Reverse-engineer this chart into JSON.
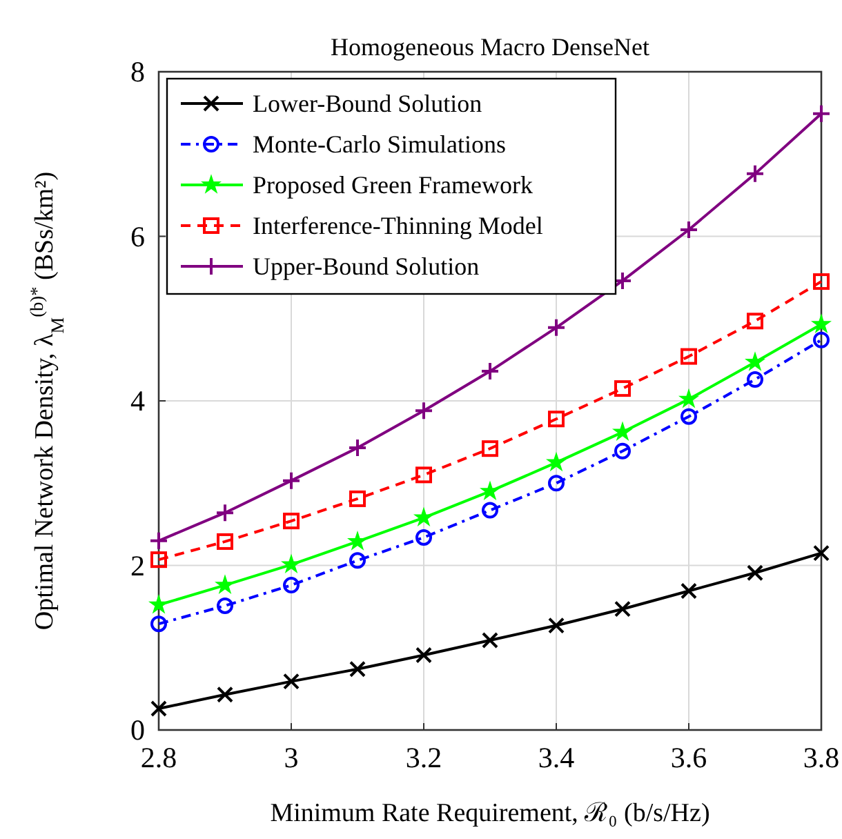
{
  "chart_data": {
    "type": "line",
    "title": "Homogeneous Macro DenseNet",
    "xlabel": "Minimum Rate Requirement, ℛ₀ (b/s/Hz)",
    "ylabel": "Optimal Network Density, λ$_{M}$$^{(b)*}$ (BSs/km²)",
    "x": [
      2.8,
      2.9,
      3.0,
      3.1,
      3.2,
      3.3,
      3.4,
      3.5,
      3.6,
      3.7,
      3.8
    ],
    "series": [
      {
        "name": "Lower-Bound Solution",
        "color": "#000000",
        "marker": "cross",
        "line_style": "solid",
        "values": [
          0.26,
          0.43,
          0.59,
          0.74,
          0.91,
          1.09,
          1.27,
          1.47,
          1.69,
          1.91,
          2.15
        ]
      },
      {
        "name": "Monte-Carlo Simulations",
        "color": "#0000ff",
        "marker": "circle",
        "line_style": "dashdot",
        "values": [
          1.29,
          1.51,
          1.76,
          2.06,
          2.34,
          2.67,
          3.0,
          3.39,
          3.81,
          4.26,
          4.74
        ]
      },
      {
        "name": "Proposed Green Framework",
        "color": "#00ff00",
        "marker": "star",
        "line_style": "solid",
        "values": [
          1.52,
          1.76,
          2.01,
          2.29,
          2.58,
          2.9,
          3.25,
          3.62,
          4.02,
          4.47,
          4.93
        ]
      },
      {
        "name": "Interference-Thinning Model",
        "color": "#ff0000",
        "marker": "square",
        "line_style": "dashed",
        "values": [
          2.07,
          2.29,
          2.54,
          2.81,
          3.1,
          3.42,
          3.78,
          4.15,
          4.54,
          4.97,
          5.45
        ]
      },
      {
        "name": "Upper-Bound Solution",
        "color": "#800080",
        "marker": "plus",
        "line_style": "solid",
        "values": [
          2.3,
          2.64,
          3.03,
          3.43,
          3.88,
          4.36,
          4.89,
          5.46,
          6.08,
          6.76,
          7.49
        ]
      }
    ],
    "xlim": [
      2.8,
      3.8
    ],
    "xticks": [
      2.8,
      3,
      3.2,
      3.4,
      3.6,
      3.8
    ],
    "ylim": [
      0,
      8
    ],
    "yticks": [
      0,
      2,
      4,
      6,
      8
    ],
    "grid": true,
    "legend": "top left"
  }
}
